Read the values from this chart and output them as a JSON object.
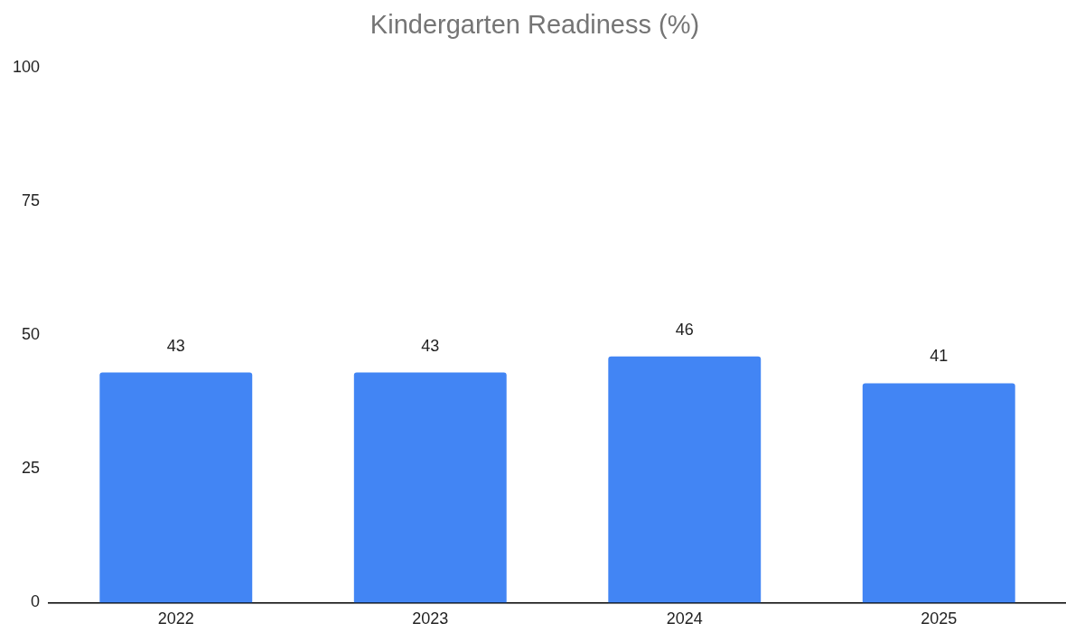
{
  "chart_data": {
    "type": "bar",
    "title": "Kindergarten Readiness (%)",
    "categories": [
      "2022",
      "2023",
      "2024",
      "2025"
    ],
    "values": [
      43,
      43,
      46,
      41
    ],
    "color": "#4285f4",
    "ylim": [
      0,
      100
    ],
    "yticks": [
      0,
      25,
      50,
      75,
      100
    ],
    "grid": false,
    "legend": false,
    "data_labels": true
  }
}
